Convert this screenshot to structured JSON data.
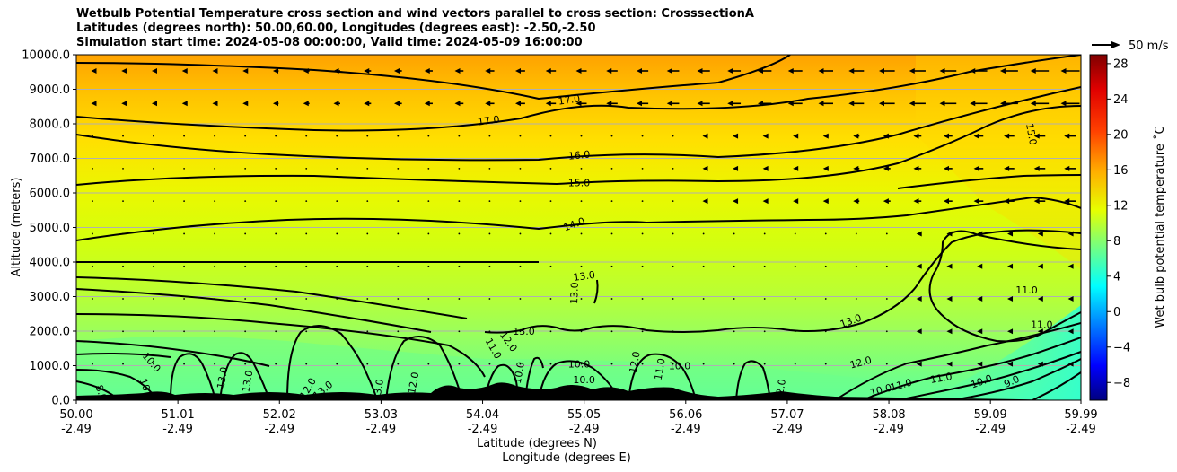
{
  "chart_data": {
    "type": "heatmap",
    "title_lines": [
      "Wetbulb Potential Temperature cross section and wind vectors parallel to cross section: CrosssectionA",
      "Latitudes (degrees north): 50.00,60.00, Longitudes (degrees east): -2.50,-2.50",
      "Simulation start time: 2024-05-08 00:00:00, Valid time: 2024-05-09 16:00:00"
    ],
    "xlabel_lat": "Latitude (degrees N)",
    "xlabel_lon": "Longitude (degrees E)",
    "ylabel": "Altitude (meters)",
    "colorbar_label": "Wet bulb potential temperature $^\\circ$C",
    "colorbar_label_display": "Wet bulb potential temperature ˚C",
    "colorbar_ticks": [
      "−8",
      "−4",
      "0",
      "4",
      "8",
      "12",
      "16",
      "20",
      "24",
      "28"
    ],
    "colorbar_tick_values": [
      -8,
      -4,
      0,
      4,
      8,
      12,
      16,
      20,
      24,
      28
    ],
    "colorbar_range": [
      -10,
      29
    ],
    "x_ticks_lat": [
      "50.00",
      "51.01",
      "52.02",
      "53.03",
      "54.04",
      "55.05",
      "56.06",
      "57.07",
      "58.08",
      "59.09",
      "59.99"
    ],
    "x_ticks_lon": [
      "-2.49",
      "-2.49",
      "-2.49",
      "-2.49",
      "-2.49",
      "-2.49",
      "-2.49",
      "-2.49",
      "-2.49",
      "-2.49",
      "-2.49"
    ],
    "x_tick_values": [
      50.0,
      51.01,
      52.02,
      53.03,
      54.04,
      55.05,
      56.06,
      57.07,
      58.08,
      59.09,
      59.99
    ],
    "xlim": [
      50.0,
      59.99
    ],
    "y_ticks": [
      "0.0",
      "1000.0",
      "2000.0",
      "3000.0",
      "4000.0",
      "5000.0",
      "6000.0",
      "7000.0",
      "8000.0",
      "9000.0",
      "10000.0"
    ],
    "y_tick_values": [
      0,
      1000,
      2000,
      3000,
      4000,
      5000,
      6000,
      7000,
      8000,
      9000,
      10000
    ],
    "ylim": [
      0,
      10000
    ],
    "grid": "horizontal",
    "quiver_key_label": "50 m/s",
    "contour_labels": [
      {
        "text": "17.0",
        "lat": 54.9,
        "alt": 8700,
        "rot": -8
      },
      {
        "text": "17.0",
        "lat": 54.1,
        "alt": 8100,
        "rot": -8
      },
      {
        "text": "16.0",
        "lat": 55.0,
        "alt": 7100,
        "rot": -5
      },
      {
        "text": "15.0",
        "lat": 55.0,
        "alt": 6300,
        "rot": 0
      },
      {
        "text": "14.0",
        "lat": 54.95,
        "alt": 5100,
        "rot": -20
      },
      {
        "text": "13.0",
        "lat": 55.05,
        "alt": 3600,
        "rot": -8
      },
      {
        "text": "13.0",
        "lat": 54.95,
        "alt": 3100,
        "rot": -88
      },
      {
        "text": "13.0",
        "lat": 54.45,
        "alt": 2000,
        "rot": 0
      },
      {
        "text": "13.0",
        "lat": 57.7,
        "alt": 2300,
        "rot": -20
      },
      {
        "text": "12.0",
        "lat": 54.3,
        "alt": 1700,
        "rot": 55
      },
      {
        "text": "11.0",
        "lat": 54.15,
        "alt": 1500,
        "rot": 60
      },
      {
        "text": "12.0",
        "lat": 57.8,
        "alt": 1100,
        "rot": -15
      },
      {
        "text": "11.0",
        "lat": 59.45,
        "alt": 3200,
        "rot": 0
      },
      {
        "text": "11.0",
        "lat": 59.6,
        "alt": 2200,
        "rot": 0
      },
      {
        "text": "11.0",
        "lat": 58.2,
        "alt": 450,
        "rot": -15
      },
      {
        "text": "11.0",
        "lat": 58.6,
        "alt": 650,
        "rot": -10
      },
      {
        "text": "10.0",
        "lat": 58.0,
        "alt": 300,
        "rot": -15
      },
      {
        "text": "10.0",
        "lat": 59.0,
        "alt": 550,
        "rot": -20
      },
      {
        "text": "9.0",
        "lat": 59.3,
        "alt": 550,
        "rot": -25
      },
      {
        "text": "15.0",
        "lat": 59.5,
        "alt": 7700,
        "rot": 80
      },
      {
        "text": "10.0",
        "lat": 50.75,
        "alt": 1100,
        "rot": 50
      },
      {
        "text": "8.0",
        "lat": 50.25,
        "alt": 220,
        "rot": 70
      },
      {
        "text": "10.0",
        "lat": 50.7,
        "alt": 320,
        "rot": 70
      },
      {
        "text": "10.0",
        "lat": 55.0,
        "alt": 1050,
        "rot": 0
      },
      {
        "text": "10.0",
        "lat": 55.05,
        "alt": 600,
        "rot": 0
      },
      {
        "text": "10.0",
        "lat": 56.0,
        "alt": 1000,
        "rot": 0
      },
      {
        "text": "12.0",
        "lat": 55.55,
        "alt": 1100,
        "rot": -80
      },
      {
        "text": "11.0",
        "lat": 55.8,
        "alt": 900,
        "rot": -80
      },
      {
        "text": "12.0",
        "lat": 57.0,
        "alt": 300,
        "rot": -80
      },
      {
        "text": "10.0",
        "lat": 54.4,
        "alt": 800,
        "rot": -80
      },
      {
        "text": "13.0",
        "lat": 51.45,
        "alt": 650,
        "rot": -80
      },
      {
        "text": "13.0",
        "lat": 51.7,
        "alt": 550,
        "rot": -80
      },
      {
        "text": "12.0",
        "lat": 52.3,
        "alt": 350,
        "rot": -60
      },
      {
        "text": "13.0",
        "lat": 52.45,
        "alt": 300,
        "rot": -40
      },
      {
        "text": "13.0",
        "lat": 53.0,
        "alt": 300,
        "rot": -80
      },
      {
        "text": "12.0",
        "lat": 53.35,
        "alt": 500,
        "rot": -80
      }
    ]
  }
}
